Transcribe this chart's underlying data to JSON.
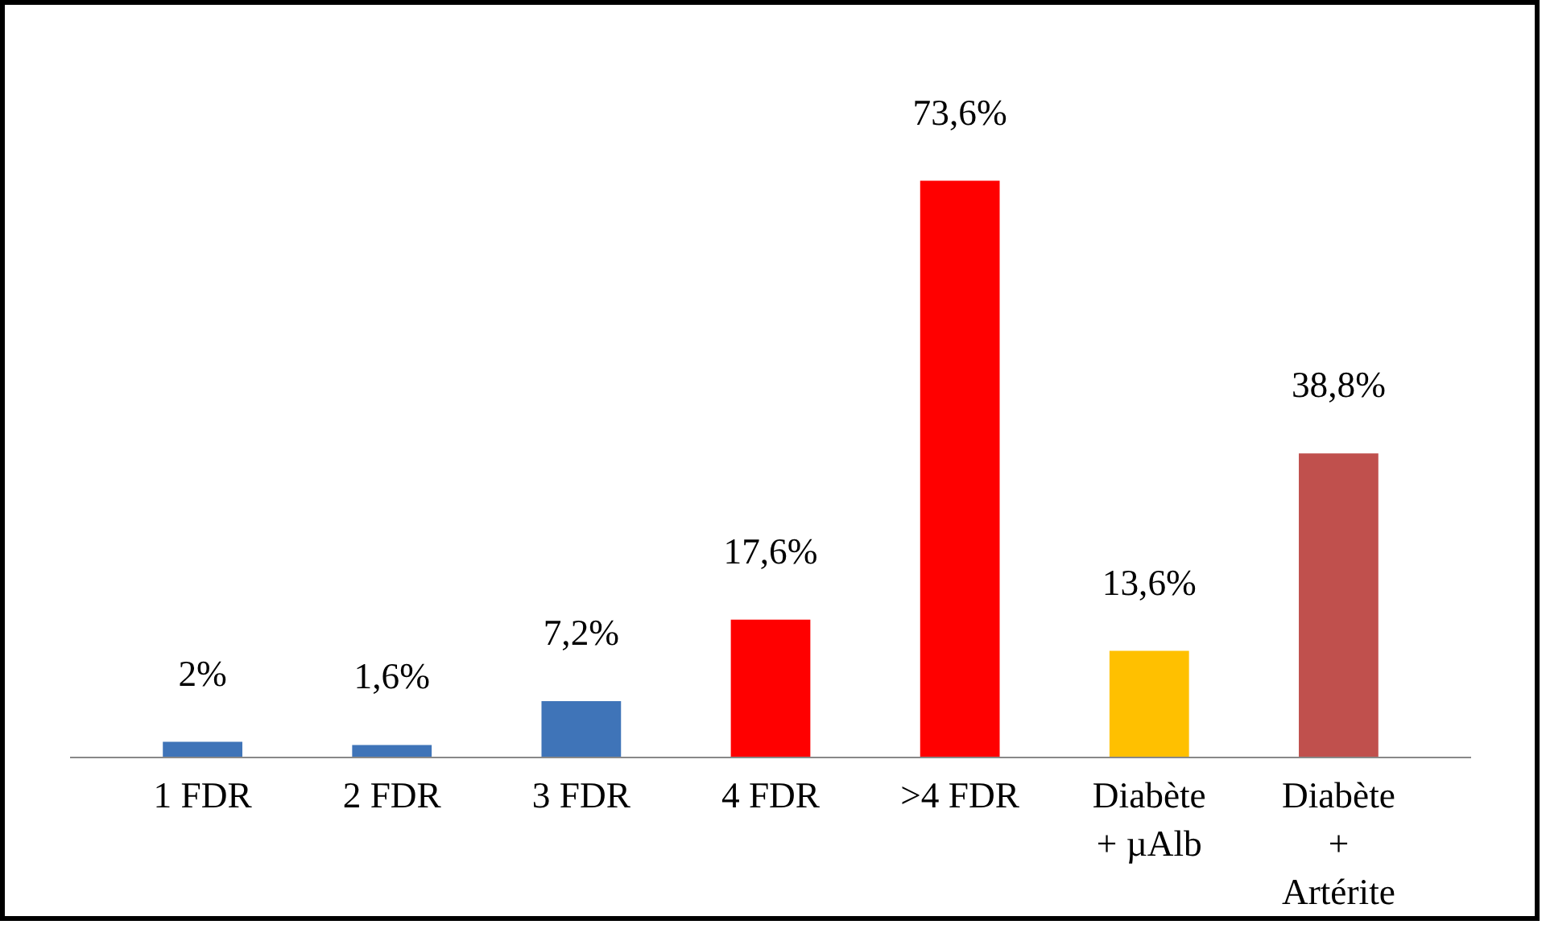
{
  "chart_data": {
    "type": "bar",
    "categories": [
      "1 FDR",
      "2 FDR",
      "3 FDR",
      "4 FDR",
      ">4 FDR",
      "Diabète\n+ µAlb",
      "Diabète\n+\nArtérite"
    ],
    "values": [
      2,
      1.6,
      7.2,
      17.6,
      73.6,
      13.6,
      38.8
    ],
    "colors": [
      "#3f74b8",
      "#3f74b8",
      "#3f74b8",
      "#ff0000",
      "#ff0000",
      "#ffc000",
      "#c0504d"
    ],
    "value_labels": [
      "2%",
      "1,6%",
      "7,2%",
      "17,6%",
      "73,6%",
      "13,6%",
      "38,8%"
    ],
    "grid": false
  }
}
